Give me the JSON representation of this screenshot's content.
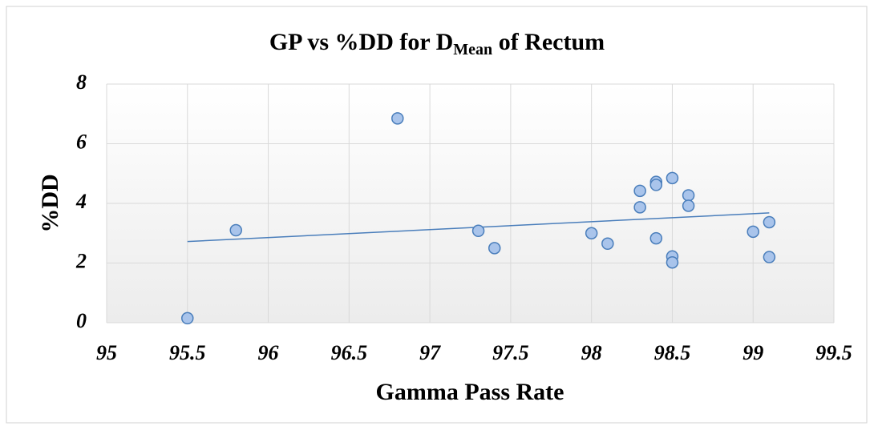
{
  "chart_data": {
    "type": "scatter",
    "title": [
      {
        "text": "GP vs %DD for D"
      },
      {
        "text": "Mean",
        "sub": true
      },
      {
        "text": " of Rectum"
      }
    ],
    "x_label": "Gamma Pass Rate",
    "y_label": "%DD",
    "series": [
      {
        "color": "#a9c4eb",
        "x": [
          95.5,
          95.8,
          96.8,
          97.3,
          97.4,
          98.0,
          98.1,
          98.3,
          98.3,
          98.4,
          98.4,
          98.4,
          98.5,
          98.5,
          98.5,
          98.6,
          98.6,
          99.0,
          99.1,
          99.1
        ],
        "values": [
          0.15,
          3.1,
          6.85,
          3.08,
          2.5,
          3.0,
          2.65,
          4.42,
          3.87,
          4.72,
          4.62,
          2.83,
          4.85,
          2.22,
          2.02,
          4.27,
          3.92,
          3.05,
          3.37,
          2.2
        ]
      }
    ],
    "trendline": {
      "x": [
        95.5,
        99.1
      ],
      "values": [
        2.72,
        3.68
      ],
      "color": "#4a7ebb"
    },
    "xlim": [
      95,
      99.5
    ],
    "xticks": [
      95,
      95.5,
      96,
      96.5,
      97,
      97.5,
      98,
      98.5,
      99,
      99.5
    ],
    "ylim": [
      0,
      8
    ],
    "yticks": [
      0,
      2,
      4,
      6,
      8
    ],
    "grid": true
  }
}
